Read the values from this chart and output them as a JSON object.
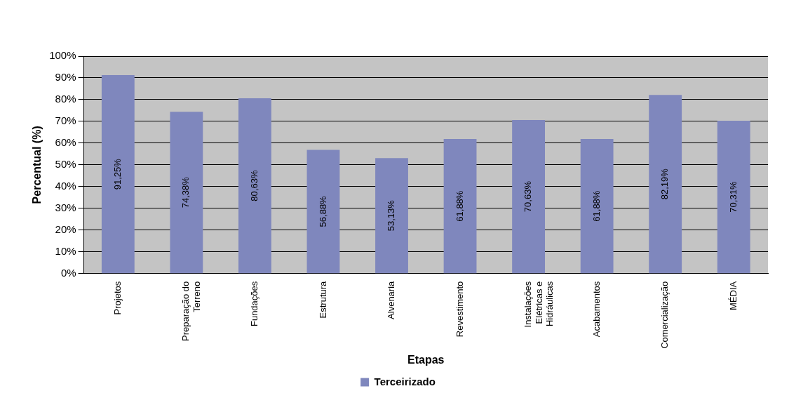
{
  "chart_data": {
    "type": "bar",
    "xlabel": "Etapas",
    "ylabel": "Percentual (%)",
    "categories": [
      "Projetos",
      "Preparação do Terreno",
      "Fundações",
      "Estrutura",
      "Alvenaria",
      "Revestimento",
      "Instalações Elétricas e Hidráulicas",
      "Acabamentos",
      "Comercialização",
      "MÉDIA"
    ],
    "series": [
      {
        "name": "Terceirizado",
        "color": "#7f87bd",
        "values": [
          91.25,
          74.38,
          80.63,
          56.88,
          53.13,
          61.88,
          70.63,
          61.88,
          82.19,
          70.31
        ],
        "value_labels": [
          "91,25%",
          "74,38%",
          "80,63%",
          "56,88%",
          "53,13%",
          "61,88%",
          "70,63%",
          "61,88%",
          "82,19%",
          "70,31%"
        ]
      }
    ],
    "ylim": [
      0,
      100
    ],
    "yticks": [
      {
        "value": 0,
        "label": "0%"
      },
      {
        "value": 10,
        "label": "10%"
      },
      {
        "value": 20,
        "label": "20%"
      },
      {
        "value": 30,
        "label": "30%"
      },
      {
        "value": 40,
        "label": "40%"
      },
      {
        "value": 50,
        "label": "50%"
      },
      {
        "value": 60,
        "label": "60%"
      },
      {
        "value": 70,
        "label": "70%"
      },
      {
        "value": 80,
        "label": "80%"
      },
      {
        "value": 90,
        "label": "90%"
      },
      {
        "value": 100,
        "label": "100%"
      }
    ],
    "grid": "y",
    "legend": "bottom"
  }
}
